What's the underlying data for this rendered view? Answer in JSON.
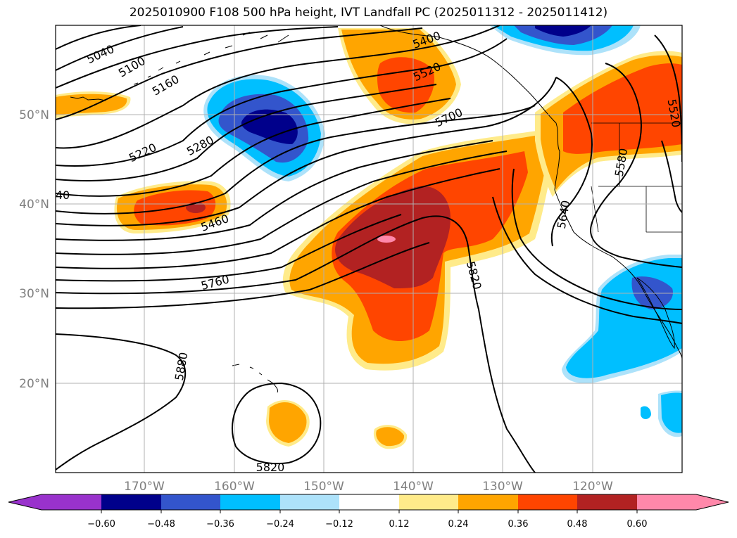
{
  "title": "2025010900 F108 500 hPa height, IVT Landfall PC (2025011312 - 2025011412)",
  "lon_labels": [
    "170°W",
    "160°W",
    "150°W",
    "140°W",
    "130°W",
    "120°W"
  ],
  "lat_labels": [
    "50°N",
    "40°N",
    "30°N",
    "20°N"
  ],
  "contour_labels": [
    "5040",
    "5100",
    "5160",
    "5220",
    "5280",
    "40",
    "5460",
    "5400",
    "5520",
    "5700",
    "5760",
    "5820",
    "5880",
    "5820",
    "5640",
    "5580",
    "5520"
  ],
  "colorbar": {
    "ticks": [
      "−0.60",
      "−0.48",
      "−0.36",
      "−0.24",
      "−0.12",
      "0.12",
      "0.24",
      "0.36",
      "0.48",
      "0.60"
    ],
    "colors": [
      "#9932CC",
      "#00008B",
      "#3355CC",
      "#00BFFF",
      "#ADE2FA",
      "#FFFFFF",
      "#FFEB8A",
      "#FFA500",
      "#FF4500",
      "#B22222",
      "#FF88AA"
    ]
  },
  "colors": {
    "neg_deep": "#00008B",
    "neg_mid": "#3355CC",
    "neg_light": "#00BFFF",
    "neg_pale": "#ADE2FA",
    "pos_pale": "#FFEB8A",
    "pos_light": "#FFA500",
    "pos_mid": "#FF4500",
    "pos_deep": "#B22222",
    "pos_max": "#FF88AA"
  }
}
